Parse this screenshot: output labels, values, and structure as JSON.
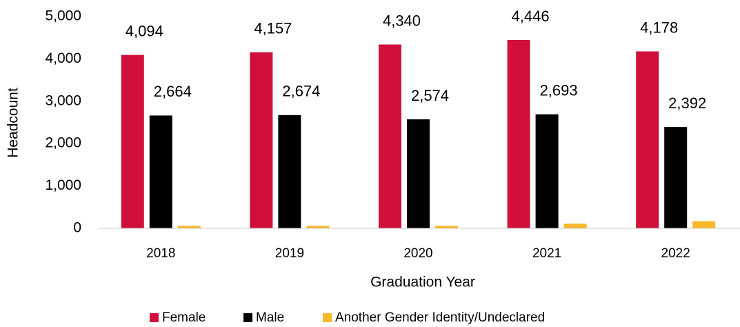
{
  "chart_data": {
    "type": "bar",
    "x_label": "Graduation Year",
    "y_label": "Headcount",
    "categories": [
      "2018",
      "2019",
      "2020",
      "2021",
      "2022"
    ],
    "series": [
      {
        "name": "Female",
        "color": "#d0103a",
        "values": [
          4094,
          4157,
          4340,
          4446,
          4178
        ],
        "value_labels": [
          "4,094",
          "4,157",
          "4,340",
          "4,446",
          "4,178"
        ]
      },
      {
        "name": "Male",
        "color": "#000000",
        "values": [
          2664,
          2674,
          2574,
          2693,
          2392
        ],
        "value_labels": [
          "2,664",
          "2,674",
          "2,574",
          "2,693",
          "2,392"
        ]
      },
      {
        "name": "Another Gender Identity/Undeclared",
        "color": "#fbb829",
        "values": [
          60,
          60,
          60,
          110,
          170
        ]
      }
    ],
    "ylim": [
      0,
      5000
    ],
    "yticks": [
      0,
      {
        "value": 1000,
        "label": "1,000"
      },
      {
        "value": 2000,
        "label": "2,000"
      },
      {
        "value": 3000,
        "label": "3,000"
      },
      {
        "value": 4000,
        "label": "4,000"
      },
      {
        "value": 5000,
        "label": "5,000"
      }
    ],
    "grid": false,
    "legend": "bottom"
  }
}
